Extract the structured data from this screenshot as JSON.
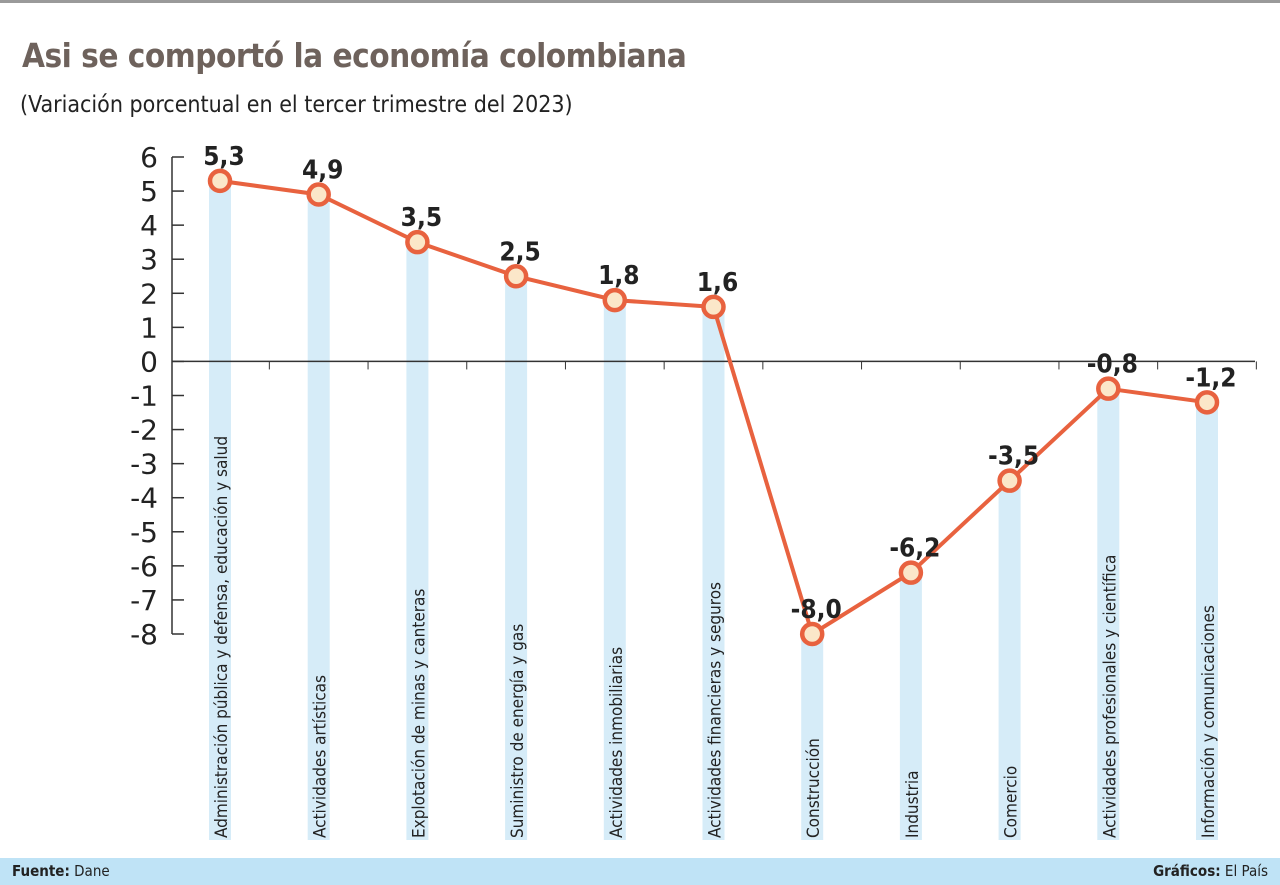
{
  "chart_data": {
    "type": "line",
    "title": "Asi se comportó la economía colombiana",
    "subtitle": "(Variación porcentual en el tercer trimestre del 2023)",
    "categories": [
      "Administración pública y defensa, educación y salud",
      "Actividades artísticas",
      "Explotación de minas y canteras",
      "Suministro de energía y gas",
      "Actividades inmobiliarias",
      "Actividades financieras y seguros",
      "Construcción",
      "Industria",
      "Comercio",
      "Actividades profesionales y científica",
      "Información y comunicaciones"
    ],
    "values": [
      5.3,
      4.9,
      3.5,
      2.5,
      1.8,
      1.6,
      -8.0,
      -6.2,
      -3.5,
      -0.8,
      -1.2
    ],
    "data_labels": [
      "5,3",
      "4,9",
      "3,5",
      "2,5",
      "1,8",
      "1,6",
      "-8,0",
      "-6,2",
      "-3,5",
      "-0,8",
      "-1,2"
    ],
    "ylim": [
      -8,
      6
    ],
    "yticks": [
      "6",
      "5",
      "4",
      "3",
      "2",
      "1",
      "0",
      "-1",
      "-2",
      "-3",
      "-4",
      "-5",
      "-6",
      "-7",
      "-8"
    ],
    "xlabel": "",
    "ylabel": "",
    "grid": false,
    "colors": {
      "line": "#e8623f",
      "marker_fill": "#fbe7c9",
      "bars": "#d6ecf8",
      "title": "#6e625c"
    }
  },
  "footer": {
    "source_label": "Fuente:",
    "source": "Dane",
    "credit_label": "Gráficos:",
    "credit": "El País"
  }
}
